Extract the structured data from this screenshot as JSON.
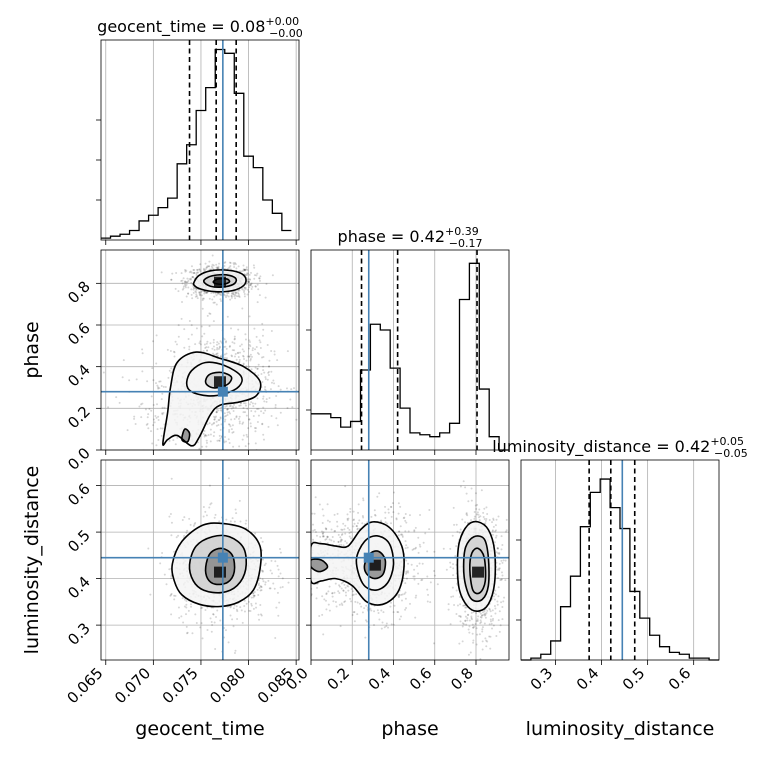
{
  "chart_data": {
    "type": "corner",
    "parameters": [
      "geocent_time",
      "phase",
      "luminosity_distance"
    ],
    "truths": {
      "geocent_time": 0.0773,
      "phase": 0.28,
      "luminosity_distance": 0.445
    },
    "ranges": {
      "geocent_time": [
        0.0645,
        0.0853
      ],
      "phase": [
        0.0,
        0.96
      ],
      "luminosity_distance": [
        0.225,
        0.655
      ]
    },
    "ticks": {
      "geocent_time": [
        0.065,
        0.07,
        0.075,
        0.08,
        0.085
      ],
      "phase": [
        0.0,
        0.2,
        0.4,
        0.6,
        0.8
      ],
      "luminosity_distance": [
        0.3,
        0.4,
        0.5,
        0.6
      ]
    },
    "tick_labels": {
      "geocent_time": [
        "0.065",
        "0.070",
        "0.075",
        "0.080",
        "0.085"
      ],
      "phase": [
        "0.0",
        "0.2",
        "0.4",
        "0.6",
        "0.8"
      ],
      "luminosity_distance": [
        "0.3",
        "0.4",
        "0.5",
        "0.6"
      ]
    },
    "marginals": [
      {
        "parameter": "geocent_time",
        "title_name": "geocent_time",
        "median": "0.08",
        "plus": "+0.00",
        "minus": "−0.00",
        "quantiles": [
          0.0738,
          0.0766,
          0.0787
        ],
        "ymax": 1.0,
        "edges": [
          0.0645,
          0.0655,
          0.0665,
          0.0675,
          0.0685,
          0.0695,
          0.0705,
          0.0715,
          0.0725,
          0.0735,
          0.0745,
          0.0755,
          0.0765,
          0.0775,
          0.0785,
          0.0795,
          0.0805,
          0.0815,
          0.0825,
          0.0835,
          0.0845
        ],
        "counts": [
          0.01,
          0.02,
          0.03,
          0.05,
          0.1,
          0.13,
          0.17,
          0.22,
          0.4,
          0.5,
          0.68,
          0.8,
          1.0,
          0.98,
          0.77,
          0.44,
          0.38,
          0.21,
          0.14,
          0.05
        ]
      },
      {
        "parameter": "phase",
        "title_name": "phase",
        "median": "0.42",
        "plus": "+0.39",
        "minus": "−0.17",
        "quantiles": [
          0.245,
          0.42,
          0.805
        ],
        "ymax": 1.0,
        "edges": [
          0.0,
          0.048,
          0.096,
          0.144,
          0.192,
          0.24,
          0.288,
          0.336,
          0.384,
          0.432,
          0.48,
          0.528,
          0.576,
          0.624,
          0.672,
          0.72,
          0.768,
          0.816,
          0.864,
          0.912,
          0.96
        ],
        "counts": [
          0.19,
          0.19,
          0.17,
          0.12,
          0.15,
          0.42,
          0.66,
          0.63,
          0.43,
          0.22,
          0.09,
          0.08,
          0.07,
          0.09,
          0.14,
          0.79,
          0.98,
          0.32,
          0.07,
          0.0
        ]
      },
      {
        "parameter": "luminosity_distance",
        "title_name": "luminosity_distance",
        "median": "0.42",
        "plus": "+0.05",
        "minus": "−0.05",
        "quantiles": [
          0.373,
          0.42,
          0.472
        ],
        "ymax": 1.0,
        "edges": [
          0.225,
          0.2465,
          0.268,
          0.2895,
          0.311,
          0.3325,
          0.354,
          0.3755,
          0.397,
          0.4185,
          0.44,
          0.4615,
          0.483,
          0.5045,
          0.526,
          0.5475,
          0.569,
          0.5905,
          0.612,
          0.6335,
          0.655
        ],
        "counts": [
          0.0,
          0.01,
          0.03,
          0.1,
          0.28,
          0.44,
          0.7,
          0.88,
          0.95,
          0.8,
          0.69,
          0.36,
          0.22,
          0.13,
          0.07,
          0.04,
          0.03,
          0.01,
          0.01,
          0.0
        ]
      }
    ],
    "joint_densities": [
      {
        "x": "geocent_time",
        "y": "phase",
        "modes": [
          {
            "cx": 0.077,
            "cy": 0.808,
            "sx": 0.0011,
            "sy": 0.024,
            "weight": 1.0
          },
          {
            "cx": 0.077,
            "cy": 0.33,
            "sx": 0.0017,
            "sy": 0.075,
            "weight": 0.9
          },
          {
            "cx": 0.0745,
            "cy": 0.15,
            "sx": 0.0025,
            "sy": 0.09,
            "weight": 0.35
          }
        ],
        "contours": [
          [
            [
              0.0743,
              0.808
            ],
            [
              0.0748,
              0.838
            ],
            [
              0.076,
              0.86
            ],
            [
              0.0775,
              0.864
            ],
            [
              0.079,
              0.852
            ],
            [
              0.0797,
              0.825
            ],
            [
              0.0795,
              0.79
            ],
            [
              0.0783,
              0.765
            ],
            [
              0.0765,
              0.76
            ],
            [
              0.075,
              0.772
            ],
            [
              0.0743,
              0.79
            ]
          ],
          [
            [
              0.0753,
              0.808
            ],
            [
              0.0757,
              0.828
            ],
            [
              0.0767,
              0.84
            ],
            [
              0.078,
              0.838
            ],
            [
              0.0787,
              0.82
            ],
            [
              0.0784,
              0.795
            ],
            [
              0.0772,
              0.782
            ],
            [
              0.076,
              0.786
            ]
          ],
          [
            [
              0.0763,
              0.808
            ],
            [
              0.0768,
              0.821
            ],
            [
              0.0777,
              0.821
            ],
            [
              0.078,
              0.808
            ],
            [
              0.0775,
              0.797
            ],
            [
              0.0766,
              0.798
            ]
          ],
          [
            [
              0.071,
              0.03
            ],
            [
              0.0715,
              0.18
            ],
            [
              0.0718,
              0.3
            ],
            [
              0.0725,
              0.42
            ],
            [
              0.0745,
              0.47
            ],
            [
              0.077,
              0.44
            ],
            [
              0.0795,
              0.4
            ],
            [
              0.0812,
              0.33
            ],
            [
              0.0808,
              0.26
            ],
            [
              0.079,
              0.23
            ],
            [
              0.077,
              0.215
            ],
            [
              0.076,
              0.17
            ],
            [
              0.0748,
              0.06
            ],
            [
              0.074,
              0.02
            ],
            [
              0.0725,
              0.07
            ],
            [
              0.0715,
              0.05
            ]
          ],
          [
            [
              0.0735,
              0.32
            ],
            [
              0.074,
              0.38
            ],
            [
              0.0755,
              0.42
            ],
            [
              0.0775,
              0.405
            ],
            [
              0.0792,
              0.355
            ],
            [
              0.079,
              0.305
            ],
            [
              0.0775,
              0.27
            ],
            [
              0.0757,
              0.26
            ],
            [
              0.074,
              0.28
            ]
          ],
          [
            [
              0.0755,
              0.335
            ],
            [
              0.076,
              0.365
            ],
            [
              0.0772,
              0.372
            ],
            [
              0.0782,
              0.35
            ],
            [
              0.0778,
              0.315
            ],
            [
              0.0765,
              0.298
            ],
            [
              0.0757,
              0.31
            ]
          ],
          [
            [
              0.073,
              0.05
            ],
            [
              0.0733,
              0.1
            ],
            [
              0.0738,
              0.08
            ],
            [
              0.0736,
              0.04
            ]
          ]
        ]
      },
      {
        "x": "geocent_time",
        "y": "luminosity_distance",
        "modes": [
          {
            "cx": 0.077,
            "cy": 0.415,
            "sx": 0.0016,
            "sy": 0.035,
            "weight": 1.0
          }
        ],
        "contours": [
          [
            [
              0.072,
              0.432
            ],
            [
              0.073,
              0.48
            ],
            [
              0.0752,
              0.515
            ],
            [
              0.0775,
              0.518
            ],
            [
              0.0798,
              0.505
            ],
            [
              0.0812,
              0.47
            ],
            [
              0.0812,
              0.42
            ],
            [
              0.0805,
              0.375
            ],
            [
              0.079,
              0.35
            ],
            [
              0.077,
              0.34
            ],
            [
              0.0748,
              0.345
            ],
            [
              0.073,
              0.365
            ],
            [
              0.0722,
              0.395
            ]
          ],
          [
            [
              0.0738,
              0.43
            ],
            [
              0.0745,
              0.47
            ],
            [
              0.0762,
              0.49
            ],
            [
              0.078,
              0.49
            ],
            [
              0.0795,
              0.465
            ],
            [
              0.0797,
              0.42
            ],
            [
              0.0788,
              0.385
            ],
            [
              0.0772,
              0.37
            ],
            [
              0.0753,
              0.375
            ],
            [
              0.0742,
              0.395
            ]
          ],
          [
            [
              0.0755,
              0.425
            ],
            [
              0.076,
              0.455
            ],
            [
              0.0772,
              0.465
            ],
            [
              0.0783,
              0.45
            ],
            [
              0.0785,
              0.415
            ],
            [
              0.0778,
              0.392
            ],
            [
              0.0765,
              0.388
            ],
            [
              0.0757,
              0.4
            ]
          ]
        ]
      },
      {
        "x": "phase",
        "y": "luminosity_distance",
        "modes": [
          {
            "cx": 0.31,
            "cy": 0.43,
            "sx": 0.07,
            "sy": 0.035,
            "weight": 0.85
          },
          {
            "cx": 0.81,
            "cy": 0.415,
            "sx": 0.035,
            "sy": 0.04,
            "weight": 1.0
          },
          {
            "cx": 0.05,
            "cy": 0.44,
            "sx": 0.06,
            "sy": 0.03,
            "weight": 0.3
          }
        ],
        "contours": [
          [
            [
              0.0,
              0.47
            ],
            [
              0.05,
              0.475
            ],
            [
              0.12,
              0.47
            ],
            [
              0.18,
              0.47
            ],
            [
              0.24,
              0.505
            ],
            [
              0.3,
              0.522
            ],
            [
              0.38,
              0.51
            ],
            [
              0.44,
              0.47
            ],
            [
              0.45,
              0.42
            ],
            [
              0.42,
              0.37
            ],
            [
              0.35,
              0.345
            ],
            [
              0.27,
              0.35
            ],
            [
              0.2,
              0.385
            ],
            [
              0.12,
              0.4
            ],
            [
              0.05,
              0.395
            ],
            [
              0.0,
              0.395
            ]
          ],
          [
            [
              0.0,
              0.425
            ],
            [
              0.04,
              0.415
            ],
            [
              0.08,
              0.425
            ],
            [
              0.05,
              0.44
            ],
            [
              0.0,
              0.44
            ]
          ],
          [
            [
              0.22,
              0.44
            ],
            [
              0.26,
              0.48
            ],
            [
              0.32,
              0.492
            ],
            [
              0.38,
              0.475
            ],
            [
              0.4,
              0.43
            ],
            [
              0.37,
              0.39
            ],
            [
              0.31,
              0.375
            ],
            [
              0.25,
              0.39
            ]
          ],
          [
            [
              0.26,
              0.43
            ],
            [
              0.29,
              0.455
            ],
            [
              0.33,
              0.458
            ],
            [
              0.36,
              0.44
            ],
            [
              0.35,
              0.41
            ],
            [
              0.31,
              0.4
            ],
            [
              0.27,
              0.41
            ]
          ],
          [
            [
              0.71,
              0.43
            ],
            [
              0.72,
              0.48
            ],
            [
              0.76,
              0.515
            ],
            [
              0.81,
              0.522
            ],
            [
              0.86,
              0.505
            ],
            [
              0.89,
              0.46
            ],
            [
              0.89,
              0.39
            ],
            [
              0.86,
              0.345
            ],
            [
              0.81,
              0.33
            ],
            [
              0.76,
              0.34
            ],
            [
              0.72,
              0.375
            ]
          ],
          [
            [
              0.74,
              0.425
            ],
            [
              0.75,
              0.468
            ],
            [
              0.79,
              0.49
            ],
            [
              0.84,
              0.485
            ],
            [
              0.86,
              0.445
            ],
            [
              0.86,
              0.385
            ],
            [
              0.83,
              0.355
            ],
            [
              0.78,
              0.355
            ],
            [
              0.75,
              0.385
            ]
          ],
          [
            [
              0.77,
              0.42
            ],
            [
              0.78,
              0.455
            ],
            [
              0.81,
              0.465
            ],
            [
              0.84,
              0.445
            ],
            [
              0.845,
              0.395
            ],
            [
              0.82,
              0.37
            ],
            [
              0.785,
              0.375
            ]
          ]
        ]
      }
    ],
    "grid": true,
    "truth_color": "#4682b4",
    "contour_color": "#000000"
  }
}
